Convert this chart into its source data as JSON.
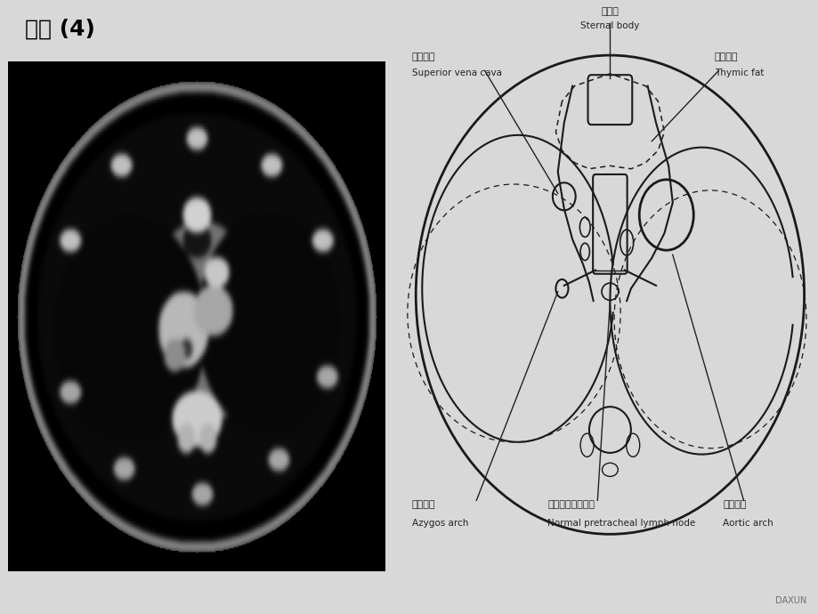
{
  "title": "胸部 (4)",
  "bg_color": "#d8d8d8",
  "ct_bg": "#1a1a1a",
  "diagram_bg": "#b8bab8",
  "line_color": "#1a1a1a",
  "label_color": "#222222",
  "labels": {
    "sternal_body_zh": "胸骨体",
    "sternal_body_en": "Sternal body",
    "superior_vena_cava_zh": "上腔静脉",
    "superior_vena_cava_en": "Superior vena cava",
    "thymic_fat_zh": "胸腺脂肪",
    "thymic_fat_en": "Thymic fat",
    "azygos_arch_zh": "奇静脉弓",
    "azygos_arch_en": "Azygos arch",
    "pretracheal_zh": "正常气管前淋巴结",
    "pretracheal_en": "Normal pretracheal lymph node",
    "aortic_arch_zh": "主动脉弓",
    "aortic_arch_en": "Aortic arch"
  },
  "watermark": "DAXUN"
}
